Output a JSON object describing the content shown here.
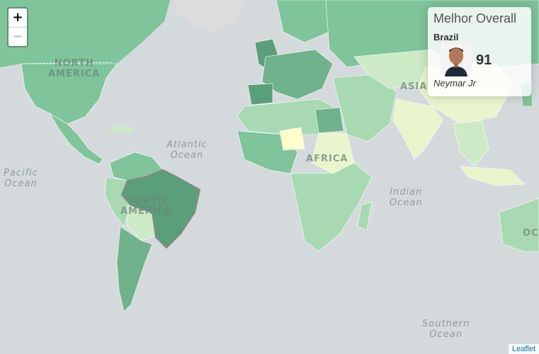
{
  "map": {
    "oceans": [
      {
        "key": "pacific",
        "lines": [
          "Pacific",
          "Ocean"
        ]
      },
      {
        "key": "atlantic",
        "lines": [
          "Atlantic",
          "Ocean"
        ]
      },
      {
        "key": "indian",
        "lines": [
          "Indian",
          "Ocean"
        ]
      },
      {
        "key": "southern",
        "lines": [
          "Southern",
          "Ocean"
        ]
      }
    ],
    "continents": [
      {
        "key": "north-america",
        "lines": [
          "NORTH",
          "AMERICA"
        ]
      },
      {
        "key": "south-america",
        "lines": [
          "SOUTH",
          "AMERICA"
        ]
      },
      {
        "key": "africa",
        "lines": [
          "AFRICA"
        ]
      },
      {
        "key": "asia",
        "lines": [
          "ASIA"
        ]
      },
      {
        "key": "oceania",
        "lines": [
          "OC"
        ]
      }
    ],
    "colors": {
      "ocean": "#d4dadc",
      "land_nodata": "#dcdcdc",
      "dark": "#5a9e7a",
      "mid_dark": "#6fb28b",
      "mid": "#7fc49b",
      "light": "#a8d9b2",
      "lighter": "#cdeac6",
      "pale": "#e8f5cd",
      "palest": "#ffffcc"
    }
  },
  "zoom": {
    "in_label": "+",
    "out_label": "−"
  },
  "info": {
    "title": "Melhor Overall",
    "country": "Brazil",
    "score": "91",
    "player": "Neymar Jr"
  },
  "attribution": "Leaflet"
}
